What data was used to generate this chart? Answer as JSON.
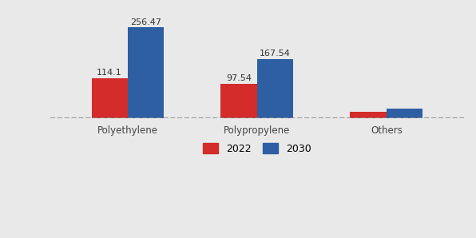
{
  "categories": [
    "Polyethylene",
    "Polypropylene",
    "Others"
  ],
  "values_2022": [
    114.1,
    97.54,
    18.5
  ],
  "values_2030": [
    256.47,
    167.54,
    28.5
  ],
  "labels_2022": [
    "114.1",
    "97.54",
    ""
  ],
  "labels_2030": [
    "256.47",
    "167.54",
    ""
  ],
  "color_2022": "#d42b2b",
  "color_2030": "#2e5fa3",
  "legend_2022": "2022",
  "legend_2030": "2030",
  "ylim": [
    0,
    300
  ],
  "background_color": "#e9e9e9",
  "bar_width": 0.28,
  "label_fontsize": 8.0,
  "ylabel_fontsize": 8.5,
  "xtick_fontsize": 8.5
}
